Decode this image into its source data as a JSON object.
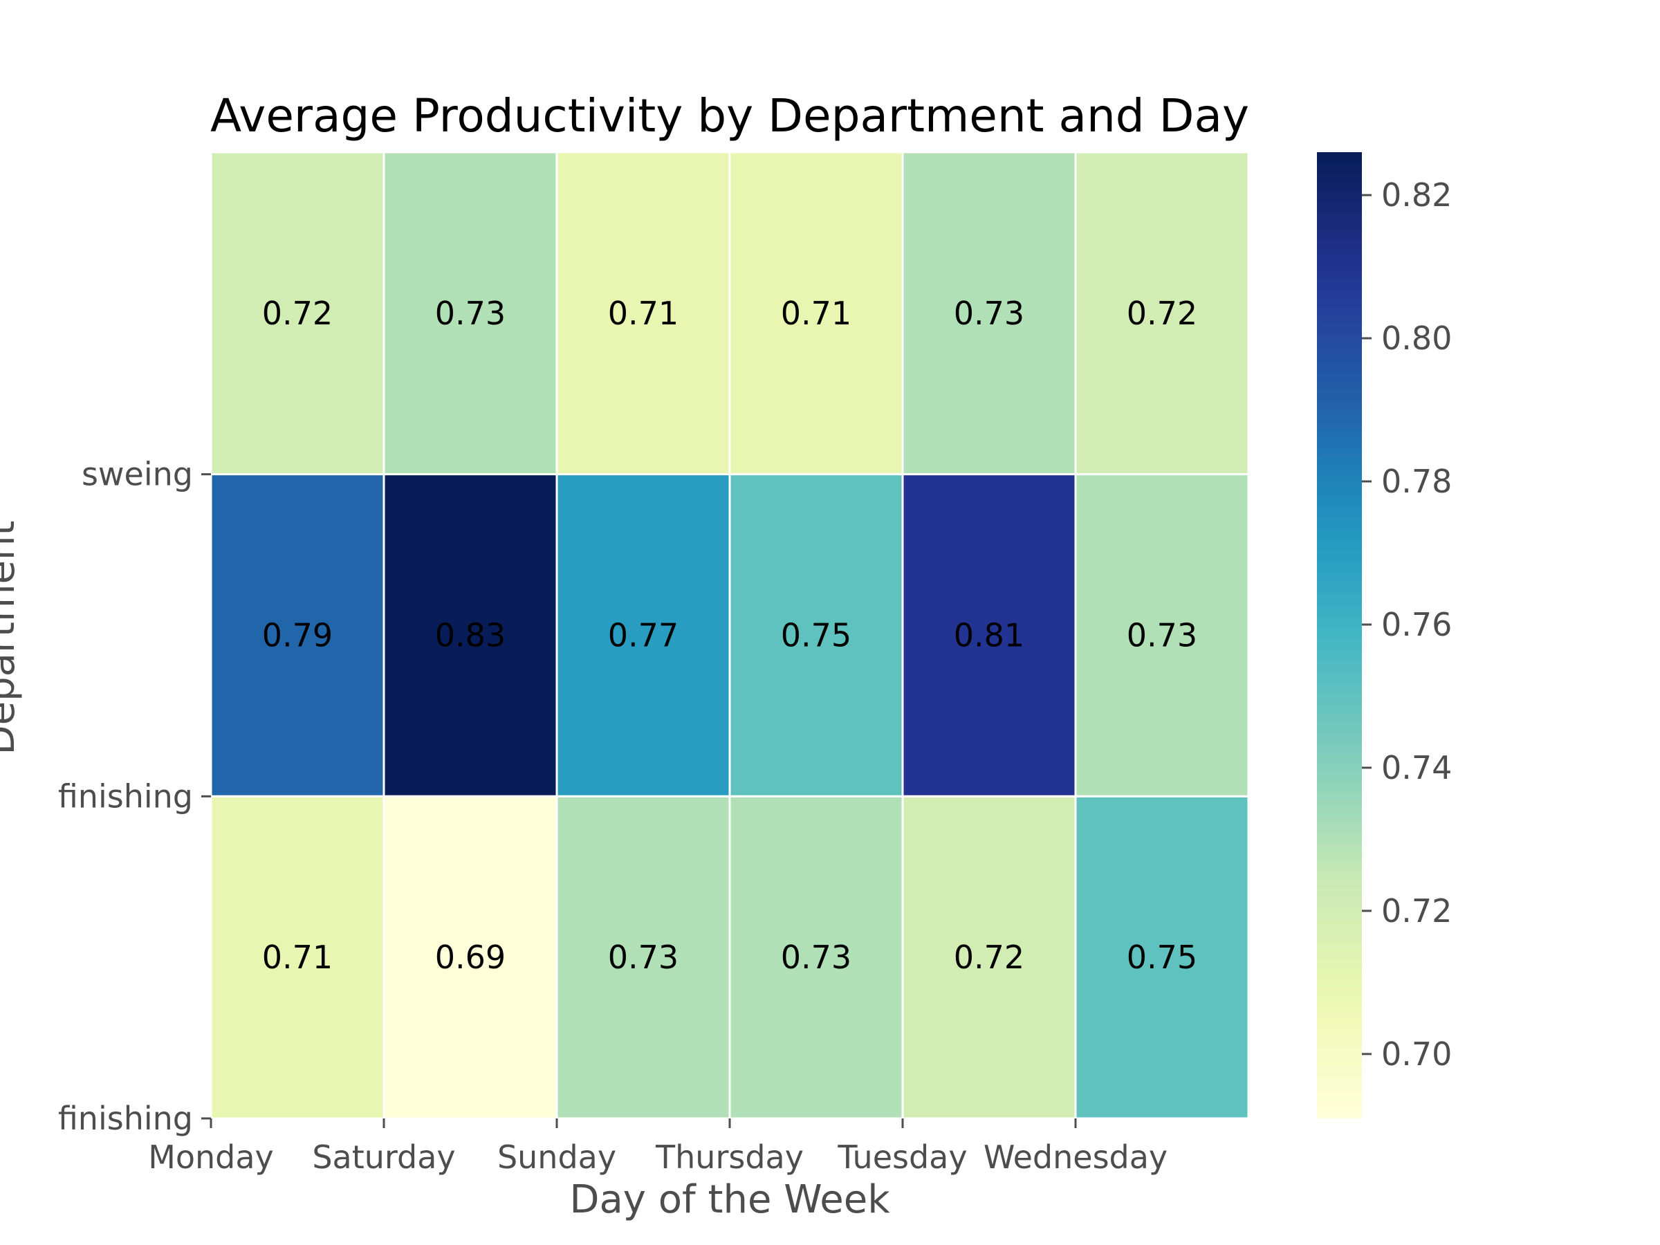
{
  "chart_data": {
    "type": "heatmap",
    "title": "Average Productivity by Department and Day",
    "xlabel": "Day of the Week",
    "ylabel": "Department",
    "x_categories": [
      "Monday",
      "Saturday",
      "Sunday",
      "Thursday",
      "Tuesday",
      "Wednesday"
    ],
    "y_tick_labels": [
      "sweing",
      "finishing ",
      "finishing"
    ],
    "rows": [
      {
        "values": [
          0.72,
          0.73,
          0.71,
          0.71,
          0.73,
          0.72
        ]
      },
      {
        "values": [
          0.79,
          0.83,
          0.77,
          0.75,
          0.81,
          0.73
        ]
      },
      {
        "values": [
          0.71,
          0.69,
          0.73,
          0.73,
          0.72,
          0.75
        ]
      }
    ],
    "colormap": "YlGnBu",
    "vmin": 0.691,
    "vmax": 0.826,
    "colorbar_ticks": [
      "0.70",
      "0.72",
      "0.74",
      "0.76",
      "0.78",
      "0.80",
      "0.82"
    ],
    "value_format": "2 decimals",
    "grid_lines_color": "#ffffff"
  }
}
